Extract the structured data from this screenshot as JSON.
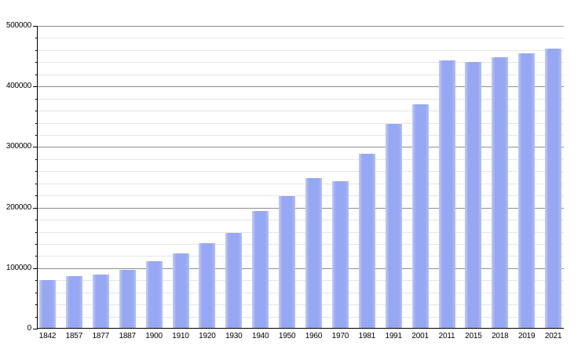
{
  "chart_data": {
    "type": "bar",
    "title": "",
    "xlabel": "",
    "ylabel": "",
    "categories": [
      "1842",
      "1857",
      "1877",
      "1887",
      "1900",
      "1910",
      "1920",
      "1930",
      "1940",
      "1950",
      "1960",
      "1970",
      "1981",
      "1991",
      "2001",
      "2011",
      "2015",
      "2018",
      "2019",
      "2021"
    ],
    "values": [
      80000,
      87000,
      90000,
      97000,
      111000,
      125000,
      141000,
      158000,
      195000,
      219000,
      249000,
      244000,
      289000,
      338000,
      371000,
      443000,
      441000,
      448000,
      455000,
      462000
    ],
    "ylim": [
      0,
      500000
    ],
    "y_major_step": 100000,
    "y_minor_step": 20000,
    "y_tick_labels": [
      "0",
      "100000",
      "200000",
      "300000",
      "400000",
      "500000"
    ],
    "grid": "on",
    "legend": "none"
  },
  "colors": {
    "background": "#ffffff",
    "bar_fill": "#96a7f3",
    "bar_edge_highlight": "#c3ccf8",
    "major_gridline": "#8f8f8f",
    "minor_gridline": "#e6e6e6",
    "axis": "#000000",
    "label_text": "#000000"
  }
}
